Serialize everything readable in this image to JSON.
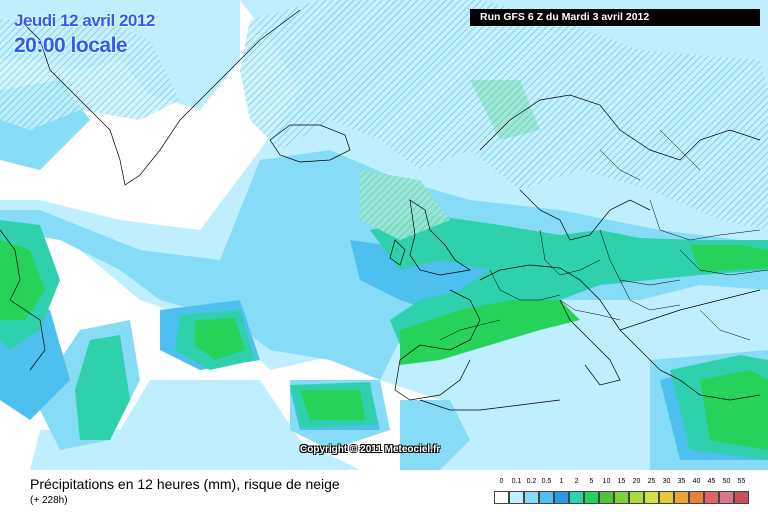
{
  "header": {
    "date_line": "Jeudi 12 avril 2012",
    "time_line": "20:00 locale",
    "run_info": "Run GFS 6 Z du Mardi 3 avril 2012"
  },
  "map": {
    "copyright": "Copyright © 2011 Meteociel.fr"
  },
  "footer": {
    "title": "Précipitations en 12 heures (mm), risque de neige",
    "subtitle": "(+ 228h)"
  },
  "legend": {
    "labels": [
      "0",
      "0.1",
      "0.2",
      "0.5",
      "1",
      "2",
      "5",
      "10",
      "15",
      "20",
      "25",
      "30",
      "35",
      "40",
      "45",
      "50",
      "55"
    ],
    "colors": [
      "#ffffff",
      "#bfefff",
      "#86dcf6",
      "#4dc0f0",
      "#2a9ae6",
      "#2fd0ac",
      "#27d25a",
      "#52c23a",
      "#7ed13a",
      "#a8dc3c",
      "#cfe23e",
      "#e6c93a",
      "#e8a43a",
      "#e7813c",
      "#e1626a",
      "#d6778a",
      "#c8505a"
    ]
  }
}
